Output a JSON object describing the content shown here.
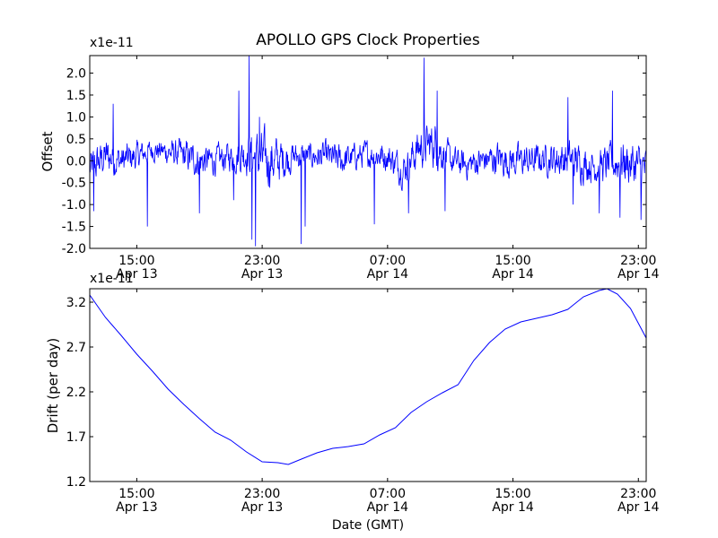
{
  "figure": {
    "title": "APOLLO GPS Clock Properties",
    "xlabel": "Date (GMT)"
  },
  "colors": {
    "series": "#0000ff",
    "axes": "#000000",
    "background": "#ffffff"
  },
  "chart_data": [
    {
      "type": "line",
      "title": "APOLLO GPS Clock Properties",
      "ylabel": "Offset",
      "y_multiplier_label": "x1e-11",
      "y_multiplier": 1e-11,
      "grid": false,
      "xlim": [
        "2010-04-13 12:00",
        "2010-04-14 23:30"
      ],
      "ylim": [
        -2.0,
        2.4
      ],
      "x_ticks": [
        {
          "x": "2010-04-13 15:00",
          "time": "15:00",
          "date": "Apr 13"
        },
        {
          "x": "2010-04-13 23:00",
          "time": "23:00",
          "date": "Apr 13"
        },
        {
          "x": "2010-04-14 07:00",
          "time": "07:00",
          "date": "Apr 14"
        },
        {
          "x": "2010-04-14 15:00",
          "time": "15:00",
          "date": "Apr 14"
        },
        {
          "x": "2010-04-14 23:00",
          "time": "23:00",
          "date": "Apr 14"
        }
      ],
      "y_ticks": [
        "-2.0",
        "-1.5",
        "-1.0",
        "-0.5",
        "0.0",
        "0.5",
        "1.0",
        "1.5",
        "2.0"
      ],
      "series": [
        {
          "color": "#0000ff",
          "noise_profile": [
            {
              "x": "2010-04-13 12:00",
              "mean": -0.2,
              "amp": 0.45
            },
            {
              "x": "2010-04-13 13:00",
              "mean": 0.1,
              "amp": 0.45
            },
            {
              "x": "2010-04-13 14:00",
              "mean": 0.0,
              "amp": 0.4
            },
            {
              "x": "2010-04-13 15:00",
              "mean": 0.1,
              "amp": 0.35
            },
            {
              "x": "2010-04-13 16:00",
              "mean": 0.25,
              "amp": 0.25
            },
            {
              "x": "2010-04-13 17:00",
              "mean": 0.2,
              "amp": 0.3
            },
            {
              "x": "2010-04-13 18:00",
              "mean": 0.1,
              "amp": 0.4
            },
            {
              "x": "2010-04-13 19:00",
              "mean": 0.0,
              "amp": 0.4
            },
            {
              "x": "2010-04-13 20:00",
              "mean": 0.0,
              "amp": 0.35
            },
            {
              "x": "2010-04-13 21:00",
              "mean": 0.1,
              "amp": 0.35
            },
            {
              "x": "2010-04-13 22:00",
              "mean": 0.2,
              "amp": 0.5
            },
            {
              "x": "2010-04-13 23:00",
              "mean": 0.0,
              "amp": 0.7
            },
            {
              "x": "2010-04-14 00:00",
              "mean": 0.0,
              "amp": 0.55
            },
            {
              "x": "2010-04-14 01:00",
              "mean": 0.1,
              "amp": 0.35
            },
            {
              "x": "2010-04-14 02:00",
              "mean": 0.1,
              "amp": 0.3
            },
            {
              "x": "2010-04-14 03:00",
              "mean": 0.1,
              "amp": 0.35
            },
            {
              "x": "2010-04-14 04:00",
              "mean": 0.0,
              "amp": 0.4
            },
            {
              "x": "2010-04-14 05:00",
              "mean": 0.1,
              "amp": 0.3
            },
            {
              "x": "2010-04-14 06:00",
              "mean": 0.15,
              "amp": 0.35
            },
            {
              "x": "2010-04-14 07:00",
              "mean": 0.1,
              "amp": 0.35
            },
            {
              "x": "2010-04-14 08:00",
              "mean": -0.2,
              "amp": 0.4
            },
            {
              "x": "2010-04-14 09:00",
              "mean": 0.3,
              "amp": 0.5
            },
            {
              "x": "2010-04-14 10:00",
              "mean": 0.4,
              "amp": 0.55
            },
            {
              "x": "2010-04-14 11:00",
              "mean": 0.0,
              "amp": 0.35
            },
            {
              "x": "2010-04-14 12:00",
              "mean": -0.1,
              "amp": 0.35
            },
            {
              "x": "2010-04-14 13:00",
              "mean": 0.0,
              "amp": 0.35
            },
            {
              "x": "2010-04-14 14:00",
              "mean": 0.05,
              "amp": 0.4
            },
            {
              "x": "2010-04-14 15:00",
              "mean": 0.0,
              "amp": 0.4
            },
            {
              "x": "2010-04-14 16:00",
              "mean": 0.0,
              "amp": 0.4
            },
            {
              "x": "2010-04-14 17:00",
              "mean": 0.05,
              "amp": 0.35
            },
            {
              "x": "2010-04-14 18:00",
              "mean": 0.05,
              "amp": 0.45
            },
            {
              "x": "2010-04-14 19:00",
              "mean": 0.0,
              "amp": 0.45
            },
            {
              "x": "2010-04-14 20:00",
              "mean": -0.1,
              "amp": 0.4
            },
            {
              "x": "2010-04-14 21:00",
              "mean": -0.1,
              "amp": 0.45
            },
            {
              "x": "2010-04-14 22:00",
              "mean": 0.0,
              "amp": 0.55
            },
            {
              "x": "2010-04-14 23:30",
              "mean": -0.2,
              "amp": 0.55
            }
          ],
          "spikes": [
            {
              "x": "2010-04-13 12:15",
              "y": -1.15
            },
            {
              "x": "2010-04-13 13:30",
              "y": 1.3
            },
            {
              "x": "2010-04-13 15:40",
              "y": -1.5
            },
            {
              "x": "2010-04-13 19:00",
              "y": -1.2
            },
            {
              "x": "2010-04-13 21:10",
              "y": -0.9
            },
            {
              "x": "2010-04-13 21:30",
              "y": 1.6
            },
            {
              "x": "2010-04-13 22:10",
              "y": 2.4
            },
            {
              "x": "2010-04-13 22:20",
              "y": -1.8
            },
            {
              "x": "2010-04-13 22:35",
              "y": -1.95
            },
            {
              "x": "2010-04-13 22:50",
              "y": 1.0
            },
            {
              "x": "2010-04-14 01:30",
              "y": -1.9
            },
            {
              "x": "2010-04-14 01:45",
              "y": -1.5
            },
            {
              "x": "2010-04-14 06:10",
              "y": -1.45
            },
            {
              "x": "2010-04-14 08:20",
              "y": -1.2
            },
            {
              "x": "2010-04-14 09:20",
              "y": 2.35
            },
            {
              "x": "2010-04-14 10:10",
              "y": 1.6
            },
            {
              "x": "2010-04-14 10:40",
              "y": -1.15
            },
            {
              "x": "2010-04-14 18:30",
              "y": 1.45
            },
            {
              "x": "2010-04-14 18:50",
              "y": -1.0
            },
            {
              "x": "2010-04-14 20:30",
              "y": -1.2
            },
            {
              "x": "2010-04-14 21:20",
              "y": 1.6
            },
            {
              "x": "2010-04-14 21:50",
              "y": -1.3
            },
            {
              "x": "2010-04-14 23:10",
              "y": -1.35
            }
          ]
        }
      ]
    },
    {
      "type": "line",
      "xlabel": "Date (GMT)",
      "ylabel": "Drift (per day)",
      "y_multiplier_label": "x1e-11",
      "y_multiplier": 1e-11,
      "grid": false,
      "xlim": [
        "2010-04-13 12:00",
        "2010-04-14 23:30"
      ],
      "ylim": [
        1.2,
        3.35
      ],
      "x_ticks": [
        {
          "x": "2010-04-13 15:00",
          "time": "15:00",
          "date": "Apr 13"
        },
        {
          "x": "2010-04-13 23:00",
          "time": "23:00",
          "date": "Apr 13"
        },
        {
          "x": "2010-04-14 07:00",
          "time": "07:00",
          "date": "Apr 14"
        },
        {
          "x": "2010-04-14 15:00",
          "time": "15:00",
          "date": "Apr 14"
        },
        {
          "x": "2010-04-14 23:00",
          "time": "23:00",
          "date": "Apr 14"
        }
      ],
      "y_ticks": [
        "1.2",
        "1.7",
        "2.2",
        "2.7",
        "3.2"
      ],
      "series": [
        {
          "color": "#0000ff",
          "points": [
            {
              "x": "2010-04-13 12:00",
              "y": 3.28
            },
            {
              "x": "2010-04-13 13:00",
              "y": 3.03
            },
            {
              "x": "2010-04-13 14:00",
              "y": 2.83
            },
            {
              "x": "2010-04-13 15:00",
              "y": 2.62
            },
            {
              "x": "2010-04-13 16:00",
              "y": 2.43
            },
            {
              "x": "2010-04-13 17:00",
              "y": 2.23
            },
            {
              "x": "2010-04-13 18:00",
              "y": 2.06
            },
            {
              "x": "2010-04-13 19:00",
              "y": 1.9
            },
            {
              "x": "2010-04-13 20:00",
              "y": 1.75
            },
            {
              "x": "2010-04-13 21:00",
              "y": 1.66
            },
            {
              "x": "2010-04-13 22:00",
              "y": 1.53
            },
            {
              "x": "2010-04-13 23:00",
              "y": 1.42
            },
            {
              "x": "2010-04-14 00:00",
              "y": 1.41
            },
            {
              "x": "2010-04-14 00:40",
              "y": 1.39
            },
            {
              "x": "2010-04-14 01:30",
              "y": 1.45
            },
            {
              "x": "2010-04-14 02:30",
              "y": 1.52
            },
            {
              "x": "2010-04-14 03:30",
              "y": 1.57
            },
            {
              "x": "2010-04-14 04:30",
              "y": 1.59
            },
            {
              "x": "2010-04-14 05:30",
              "y": 1.62
            },
            {
              "x": "2010-04-14 06:30",
              "y": 1.72
            },
            {
              "x": "2010-04-14 07:30",
              "y": 1.8
            },
            {
              "x": "2010-04-14 08:30",
              "y": 1.97
            },
            {
              "x": "2010-04-14 09:30",
              "y": 2.09
            },
            {
              "x": "2010-04-14 10:30",
              "y": 2.19
            },
            {
              "x": "2010-04-14 11:30",
              "y": 2.28
            },
            {
              "x": "2010-04-14 12:30",
              "y": 2.55
            },
            {
              "x": "2010-04-14 13:30",
              "y": 2.75
            },
            {
              "x": "2010-04-14 14:30",
              "y": 2.9
            },
            {
              "x": "2010-04-14 15:30",
              "y": 2.98
            },
            {
              "x": "2010-04-14 16:30",
              "y": 3.02
            },
            {
              "x": "2010-04-14 17:30",
              "y": 3.06
            },
            {
              "x": "2010-04-14 18:30",
              "y": 3.12
            },
            {
              "x": "2010-04-14 19:30",
              "y": 3.26
            },
            {
              "x": "2010-04-14 20:30",
              "y": 3.33
            },
            {
              "x": "2010-04-14 21:00",
              "y": 3.35
            },
            {
              "x": "2010-04-14 21:40",
              "y": 3.29
            },
            {
              "x": "2010-04-14 22:30",
              "y": 3.13
            },
            {
              "x": "2010-04-14 23:30",
              "y": 2.8
            }
          ]
        }
      ]
    }
  ]
}
